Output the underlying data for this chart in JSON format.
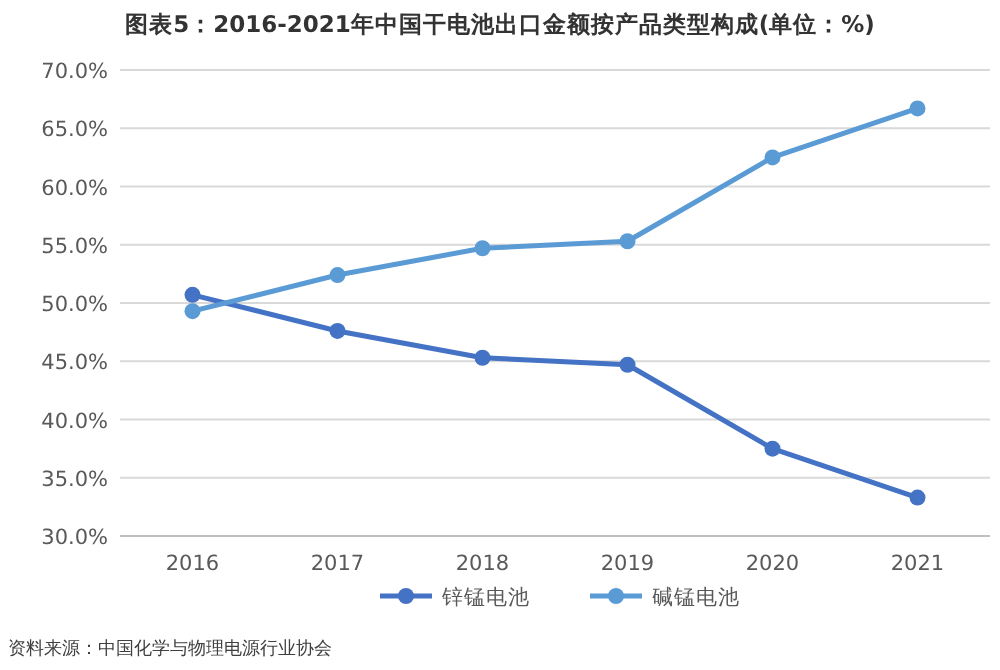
{
  "chart_data": {
    "type": "line",
    "title": "图表5：2016-2021年中国干电池出口金额按产品类型构成(单位：%)",
    "categories": [
      "2016",
      "2017",
      "2018",
      "2019",
      "2020",
      "2021"
    ],
    "series": [
      {
        "name": "锌锰电池",
        "color": "#4472c4",
        "values": [
          50.7,
          47.6,
          45.3,
          44.7,
          37.5,
          33.3
        ]
      },
      {
        "name": "碱锰电池",
        "color": "#5b9bd5",
        "values": [
          49.3,
          52.4,
          54.7,
          55.3,
          62.5,
          66.7
        ]
      }
    ],
    "ylim": [
      30,
      70
    ],
    "yticks": [
      {
        "value": 30,
        "label": "30.0%"
      },
      {
        "value": 35,
        "label": "35.0%"
      },
      {
        "value": 40,
        "label": "40.0%"
      },
      {
        "value": 45,
        "label": "45.0%"
      },
      {
        "value": 50,
        "label": "50.0%"
      },
      {
        "value": 55,
        "label": "55.0%"
      },
      {
        "value": 60,
        "label": "60.0%"
      },
      {
        "value": 65,
        "label": "65.0%"
      },
      {
        "value": 70,
        "label": "70.0%"
      }
    ],
    "grid": "y",
    "legend": "bottom",
    "marker": "circle",
    "line_style": "solid",
    "annotations": [
      "资料来源：中国化学与物理电源行业协会"
    ]
  }
}
